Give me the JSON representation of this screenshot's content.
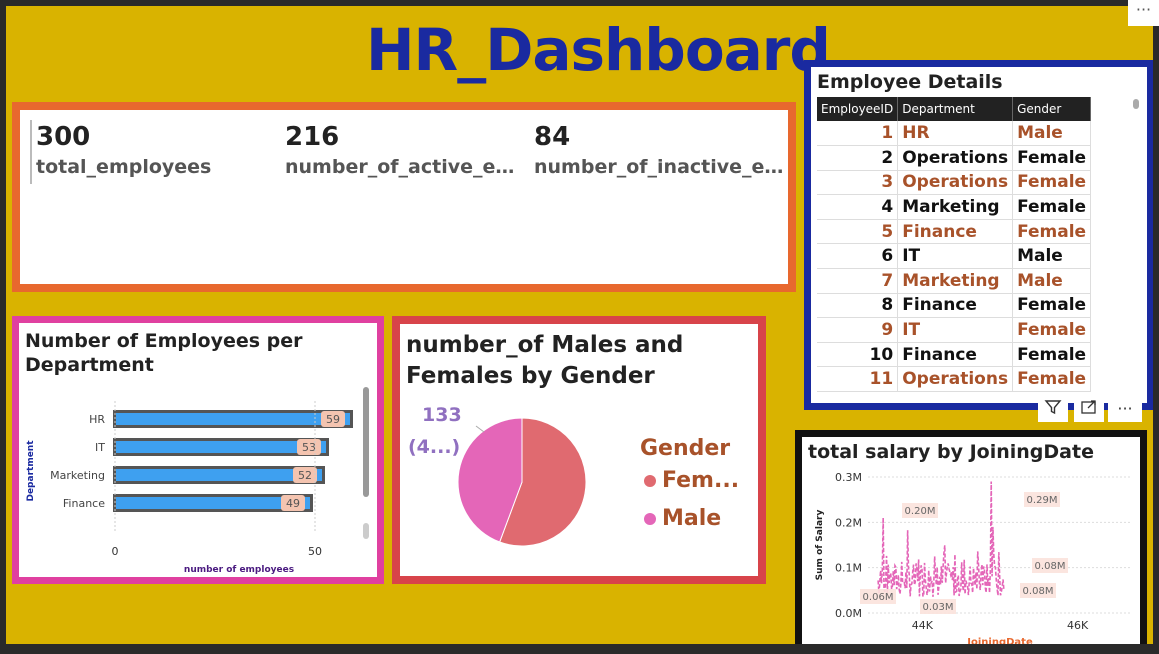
{
  "header": {
    "title": "HR_Dashboard",
    "more_label": "···"
  },
  "kpis": [
    {
      "value": "300",
      "label": "total_employees"
    },
    {
      "value": "216",
      "label": "number_of_active_employees"
    },
    {
      "value": "84",
      "label": "number_of_inactive_employees"
    }
  ],
  "employee_table": {
    "title": "Employee Details",
    "columns": [
      "EmployeeID",
      "Department",
      "Gender"
    ],
    "rows": [
      [
        "1",
        "HR",
        "Male"
      ],
      [
        "2",
        "Operations",
        "Female"
      ],
      [
        "3",
        "Operations",
        "Female"
      ],
      [
        "4",
        "Marketing",
        "Female"
      ],
      [
        "5",
        "Finance",
        "Female"
      ],
      [
        "6",
        "IT",
        "Male"
      ],
      [
        "7",
        "Marketing",
        "Male"
      ],
      [
        "8",
        "Finance",
        "Female"
      ],
      [
        "9",
        "IT",
        "Female"
      ],
      [
        "10",
        "Finance",
        "Female"
      ],
      [
        "11",
        "Operations",
        "Female"
      ]
    ],
    "icons": [
      "filter-icon",
      "focus-mode-icon",
      "more-options-icon"
    ]
  },
  "bar_chart": {
    "title": "Number of Employees per Department",
    "chart_data": {
      "type": "bar",
      "orientation": "horizontal",
      "categories": [
        "HR",
        "IT",
        "Marketing",
        "Finance"
      ],
      "values": [
        59,
        53,
        52,
        49
      ],
      "data_labels": [
        "59",
        "53",
        "52",
        "49"
      ],
      "xlabel": "number of employees",
      "ylabel": "Department",
      "x_ticks": [
        "0",
        "50"
      ],
      "xlim": [
        0,
        60
      ],
      "color": "#3ea0f0"
    }
  },
  "pie_chart": {
    "title": "number_of Males and Females by Gender",
    "label_value": "133",
    "label_pct": "(4...)",
    "legend_title": "Gender",
    "chart_data": {
      "type": "pie",
      "categories": [
        "Female",
        "Male"
      ],
      "legend_labels": [
        "Fem...",
        "Male"
      ],
      "values": [
        167,
        133
      ],
      "colors": [
        "#e06a70",
        "#e466b8"
      ]
    }
  },
  "line_chart": {
    "title": "total salary by JoiningDate",
    "chart_data": {
      "type": "line",
      "xlabel": "JoiningDate",
      "ylabel": "Sum of Salary",
      "y_ticks": [
        "0.0M",
        "0.1M",
        "0.2M",
        "0.3M"
      ],
      "x_ticks": [
        "44K",
        "46K"
      ],
      "ylim": [
        0,
        0.3
      ],
      "xlim": [
        43300,
        46700
      ],
      "data_labels": [
        "0.20M",
        "0.29M",
        "0.06M",
        "0.03M",
        "0.08M",
        "0.08M"
      ],
      "color": "#e466b8",
      "line_style": "dashed"
    }
  }
}
